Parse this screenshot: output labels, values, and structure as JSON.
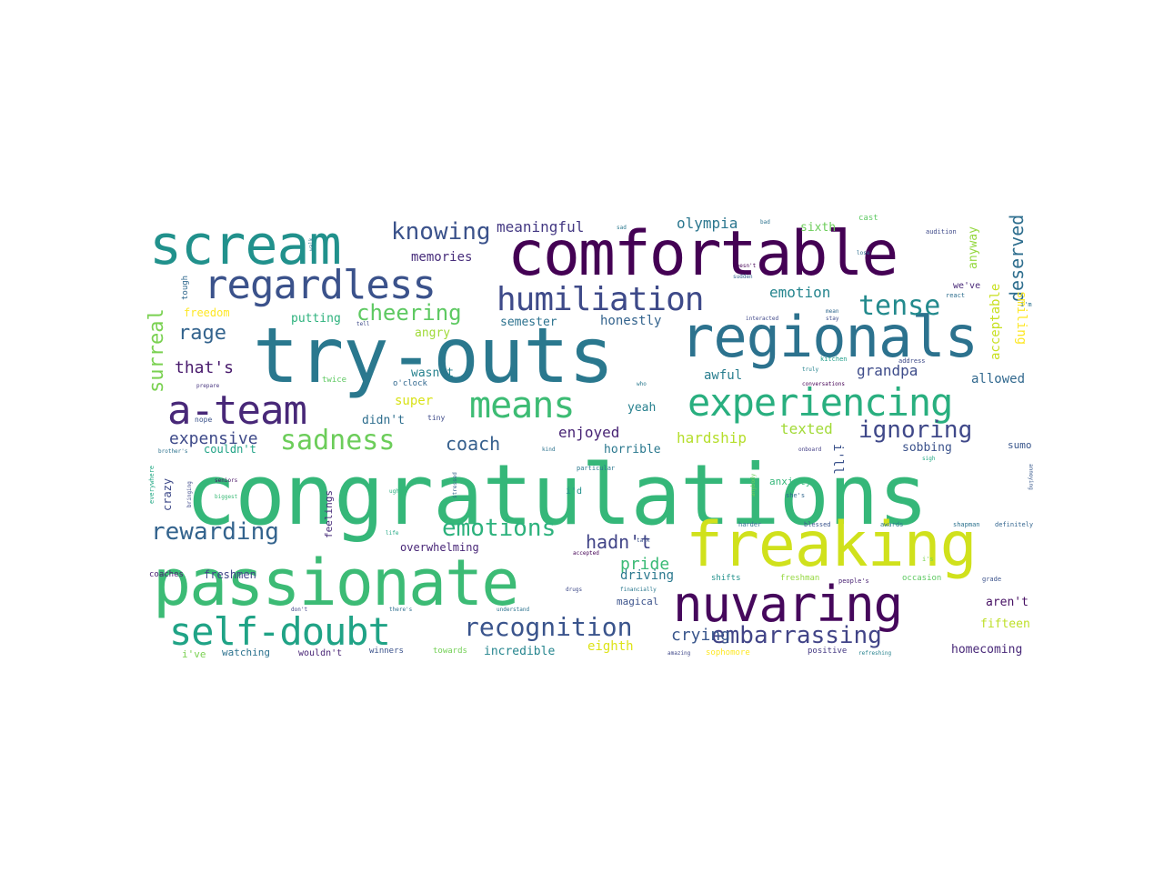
{
  "words": [
    {
      "text": "congratulations",
      "color": "#35b779"
    },
    {
      "text": "try-outs",
      "color": "#2a788e"
    },
    {
      "text": "passionate",
      "color": "#3cbb75"
    },
    {
      "text": "comfortable",
      "color": "#440154"
    },
    {
      "text": "regionals",
      "color": "#2c728e"
    },
    {
      "text": "freaking",
      "color": "#d0e11c"
    },
    {
      "text": "scream",
      "color": "#21918c"
    },
    {
      "text": "nuvaring",
      "color": "#46085c"
    },
    {
      "text": "experiencing",
      "color": "#29af7f"
    },
    {
      "text": "regardless",
      "color": "#3b528b"
    },
    {
      "text": "a-team",
      "color": "#482878"
    },
    {
      "text": "self-doubt",
      "color": "#20a386"
    },
    {
      "text": "humiliation",
      "color": "#3e4a89"
    },
    {
      "text": "means",
      "color": "#3dbc74"
    },
    {
      "text": "sadness",
      "color": "#6ccd5a"
    },
    {
      "text": "recognition",
      "color": "#3a548c"
    },
    {
      "text": "emotions",
      "color": "#2db27d"
    },
    {
      "text": "rewarding",
      "color": "#33638d"
    },
    {
      "text": "embarrassing",
      "color": "#414487"
    },
    {
      "text": "ignoring",
      "color": "#3f4889"
    },
    {
      "text": "tense",
      "color": "#238a8d"
    },
    {
      "text": "knowing",
      "color": "#3b528b"
    },
    {
      "text": "cheering",
      "color": "#5ec962"
    },
    {
      "text": "deserved",
      "color": "#2e6e8e"
    },
    {
      "text": "surreal",
      "color": "#7ad151"
    },
    {
      "text": "rage",
      "color": "#33638d"
    },
    {
      "text": "that's",
      "color": "#481a6c"
    },
    {
      "text": "expensive",
      "color": "#3e4a89"
    },
    {
      "text": "coach",
      "color": "#355f8d"
    },
    {
      "text": "hadn't",
      "color": "#414487"
    },
    {
      "text": "pride",
      "color": "#3aba76"
    },
    {
      "text": "crying",
      "color": "#39568c"
    },
    {
      "text": "grandpa",
      "color": "#3e4c8a"
    },
    {
      "text": "meaningful",
      "color": "#443983"
    },
    {
      "text": "olympia",
      "color": "#2a768e"
    },
    {
      "text": "memories",
      "color": "#472d7b"
    },
    {
      "text": "emotion",
      "color": "#25858e"
    },
    {
      "text": "enjoyed",
      "color": "#482475"
    },
    {
      "text": "hardship",
      "color": "#b5de2b"
    },
    {
      "text": "texted",
      "color": "#a2da37"
    },
    {
      "text": "driving",
      "color": "#2a788e"
    },
    {
      "text": "honestly",
      "color": "#33638d"
    },
    {
      "text": "awful",
      "color": "#287d8e"
    },
    {
      "text": "allowed",
      "color": "#31688e"
    },
    {
      "text": "acceptable",
      "color": "#c8e020"
    },
    {
      "text": "smiling",
      "color": "#fde725"
    },
    {
      "text": "anyway",
      "color": "#95d840"
    },
    {
      "text": "sixth",
      "color": "#6ccd5a"
    },
    {
      "text": "semester",
      "color": "#2c728e"
    },
    {
      "text": "putting",
      "color": "#2db27d"
    },
    {
      "text": "super",
      "color": "#d8e219"
    },
    {
      "text": "angry",
      "color": "#a0da39"
    },
    {
      "text": "wasn't",
      "color": "#26828e"
    },
    {
      "text": "didn't",
      "color": "#2e6e8e"
    },
    {
      "text": "yeah",
      "color": "#27808e"
    },
    {
      "text": "horrible",
      "color": "#2a788e"
    },
    {
      "text": "sobbing",
      "color": "#3b528b"
    },
    {
      "text": "couldn't",
      "color": "#20a386"
    },
    {
      "text": "crazy",
      "color": "#3e4a89"
    },
    {
      "text": "freshmen",
      "color": "#404688"
    },
    {
      "text": "overwhelming",
      "color": "#482677"
    },
    {
      "text": "magical",
      "color": "#3b528b"
    },
    {
      "text": "incredible",
      "color": "#25858e"
    },
    {
      "text": "eighth",
      "color": "#dde318"
    },
    {
      "text": "homecoming",
      "color": "#482878"
    },
    {
      "text": "fifteen",
      "color": "#bddf26"
    },
    {
      "text": "aren't",
      "color": "#471164"
    },
    {
      "text": "freedom",
      "color": "#fde725"
    },
    {
      "text": "feelings",
      "color": "#472c7a"
    },
    {
      "text": "anxiety",
      "color": "#35b779"
    },
    {
      "text": "coaches",
      "color": "#482071"
    },
    {
      "text": "tough",
      "color": "#31688e"
    },
    {
      "text": "o'clock",
      "color": "#31688e"
    },
    {
      "text": "tiny",
      "color": "#3e4a89"
    },
    {
      "text": "nope",
      "color": "#3b528b"
    },
    {
      "text": "twice",
      "color": "#5ec962"
    },
    {
      "text": "watching",
      "color": "#2c728e"
    },
    {
      "text": "i've",
      "color": "#7ad151"
    },
    {
      "text": "wouldn't",
      "color": "#482475"
    },
    {
      "text": "winners",
      "color": "#3b528b"
    },
    {
      "text": "towards",
      "color": "#73d056"
    },
    {
      "text": "positive",
      "color": "#443983"
    },
    {
      "text": "sophomore",
      "color": "#fde725"
    },
    {
      "text": "cast",
      "color": "#5ec962"
    },
    {
      "text": "audition",
      "color": "#3e4989"
    },
    {
      "text": "we've",
      "color": "#482878"
    },
    {
      "text": "react",
      "color": "#2e6e8e"
    },
    {
      "text": "kitchen",
      "color": "#1f9e89"
    },
    {
      "text": "address",
      "color": "#3e4a89"
    },
    {
      "text": "occasion",
      "color": "#5ec962"
    },
    {
      "text": "grade",
      "color": "#3b528b"
    },
    {
      "text": "shapman",
      "color": "#2c728e"
    },
    {
      "text": "definitely",
      "color": "#32648e"
    },
    {
      "text": "blessed",
      "color": "#3a548c"
    },
    {
      "text": "awards",
      "color": "#2a788e"
    },
    {
      "text": "harder",
      "color": "#2e6e8e"
    },
    {
      "text": "people's",
      "color": "#482173"
    },
    {
      "text": "freshman",
      "color": "#95d840"
    },
    {
      "text": "shifts",
      "color": "#21918c"
    },
    {
      "text": "sumo",
      "color": "#39568c"
    },
    {
      "text": "particular",
      "color": "#2a788e"
    },
    {
      "text": "i'd",
      "color": "#21918c"
    },
    {
      "text": "accepted",
      "color": "#440154"
    },
    {
      "text": "financially",
      "color": "#2a788e"
    },
    {
      "text": "drugs",
      "color": "#3e4a89"
    },
    {
      "text": "understand",
      "color": "#2c728e"
    },
    {
      "text": "there's",
      "color": "#2e6e8e"
    },
    {
      "text": "don't",
      "color": "#404688"
    },
    {
      "text": "brother's",
      "color": "#2c728e"
    },
    {
      "text": "seniors",
      "color": "#471164"
    },
    {
      "text": "biggest",
      "color": "#3aba76"
    },
    {
      "text": "everywhere",
      "color": "#22a884"
    },
    {
      "text": "bringing",
      "color": "#3e4989"
    },
    {
      "text": "stressed",
      "color": "#33638d"
    },
    {
      "text": "prepare",
      "color": "#46337e"
    },
    {
      "text": "anybody",
      "color": "#6ccd5a"
    },
    {
      "text": "she's",
      "color": "#31688e"
    },
    {
      "text": "doesn't",
      "color": "#440154"
    },
    {
      "text": "sudden",
      "color": "#33638d"
    },
    {
      "text": "interacted",
      "color": "#3f4788"
    },
    {
      "text": "amazing",
      "color": "#3f4788"
    },
    {
      "text": "refreshing",
      "color": "#26828e"
    },
    {
      "text": "conversations",
      "color": "#440154"
    },
    {
      "text": "truly",
      "color": "#25838e"
    },
    {
      "text": "onboard",
      "color": "#433e85"
    },
    {
      "text": "sigh",
      "color": "#22a884"
    },
    {
      "text": "i'll",
      "color": "#3b528b"
    },
    {
      "text": "i'm",
      "color": "#2c728e"
    },
    {
      "text": "sad",
      "color": "#2a788e"
    },
    {
      "text": "bad",
      "color": "#2c728e"
    },
    {
      "text": "i's",
      "color": "#7ad151"
    },
    {
      "text": "who",
      "color": "#2a788e"
    },
    {
      "text": "lose",
      "color": "#2e6e8e"
    },
    {
      "text": "annoying",
      "color": "#38598c"
    },
    {
      "text": "mean",
      "color": "#31688e"
    },
    {
      "text": "stay",
      "color": "#3e4c8a"
    },
    {
      "text": "ugh",
      "color": "#29af7f"
    },
    {
      "text": "kind",
      "color": "#2c728e"
    },
    {
      "text": "talk",
      "color": "#3b528b"
    },
    {
      "text": "life",
      "color": "#22a884"
    },
    {
      "text": "walk",
      "color": "#2a788e"
    },
    {
      "text": "tell",
      "color": "#3e4a89"
    }
  ]
}
